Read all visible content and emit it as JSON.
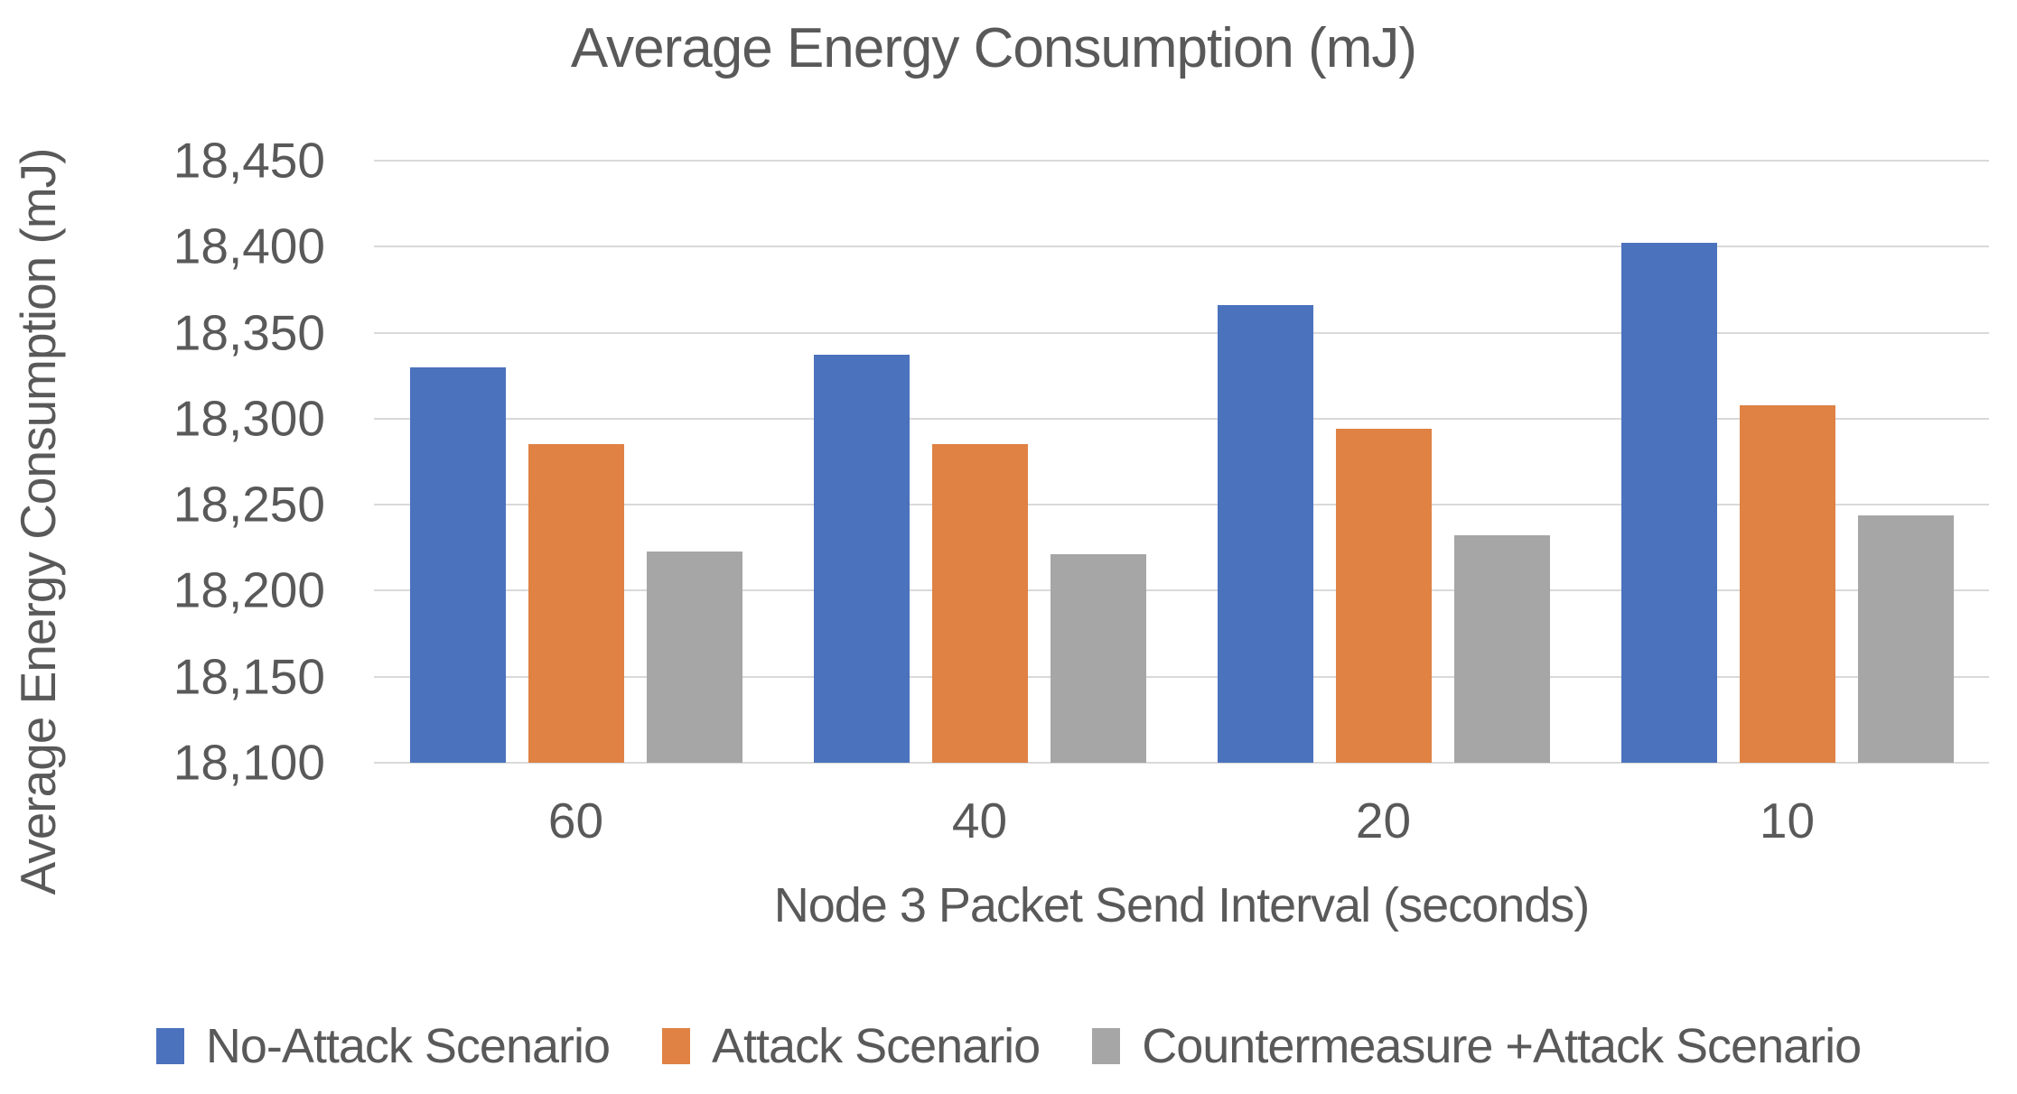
{
  "chart_data": {
    "type": "bar",
    "title": "Average Energy Consumption (mJ)",
    "xlabel": "Node 3 Packet Send Interval (seconds)",
    "ylabel": "Average Energy Consumption (mJ)",
    "categories": [
      "60",
      "40",
      "20",
      "10"
    ],
    "series": [
      {
        "name": "No-Attack Scenario",
        "color": "#4B72BD",
        "values": [
          18330,
          18337,
          18366,
          18402
        ]
      },
      {
        "name": "Attack Scenario",
        "color": "#DF8244",
        "values": [
          18285,
          18285,
          18294,
          18308
        ]
      },
      {
        "name": "Countermeasure +Attack Scenario",
        "color": "#A6A6A6",
        "values": [
          18223,
          18221,
          18232,
          18244
        ]
      }
    ],
    "ylim": [
      18100,
      18450
    ],
    "ytick_step": 50,
    "ytick_labels": [
      "18,450",
      "18,400",
      "18,350",
      "18,300",
      "18,250",
      "18,200",
      "18,150",
      "18,100"
    ],
    "grid": true,
    "legend_position": "bottom",
    "gridline_color": "#D9D9D9",
    "text_color": "#595959"
  }
}
